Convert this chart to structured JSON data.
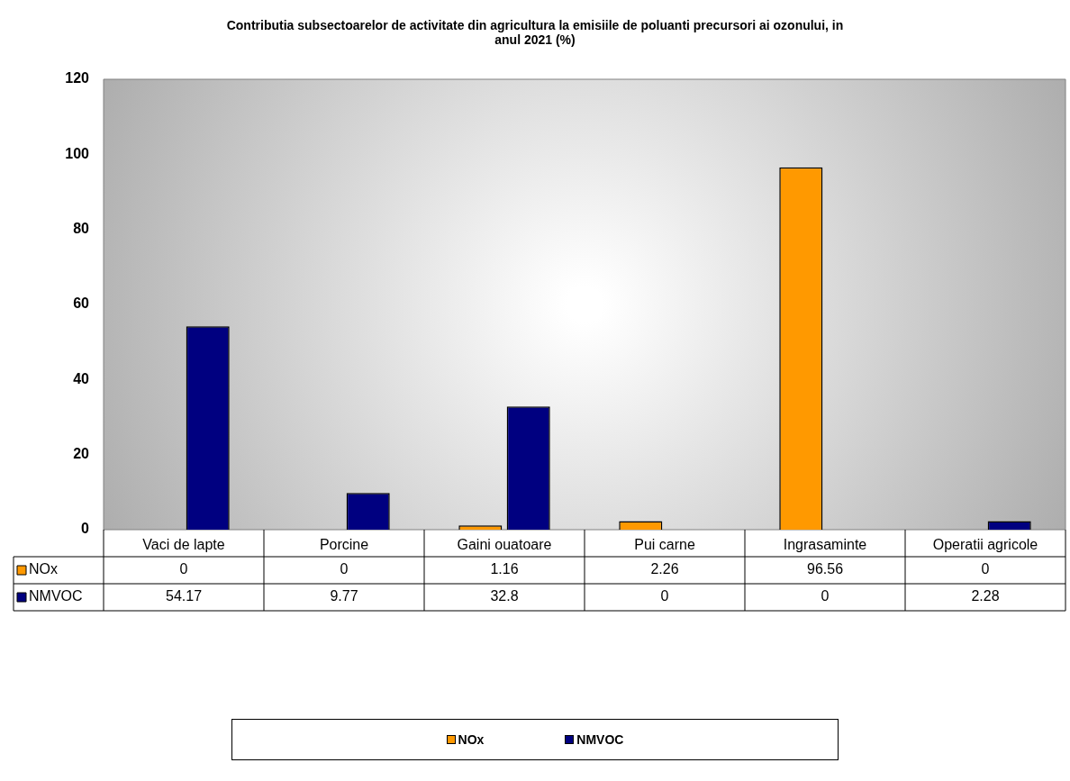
{
  "chart_data": {
    "type": "bar",
    "title": "Contributia  subsectoarelor de activitate din agricultura la emisiile de poluanti precursori ai ozonului, in anul 2021 (%)",
    "categories": [
      "Vaci de lapte",
      "Porcine",
      "Gaini ouatoare",
      "Pui carne",
      "Ingrasaminte",
      "Operatii agricole"
    ],
    "series": [
      {
        "name": "NOx",
        "color": "#ff9900",
        "values": [
          0,
          0,
          1.16,
          2.26,
          96.56,
          0
        ]
      },
      {
        "name": "NMVOC",
        "color": "#000080",
        "values": [
          54.17,
          9.77,
          32.8,
          0,
          0,
          2.28
        ]
      }
    ],
    "ylim": [
      0,
      120
    ],
    "yticks": [
      0,
      20,
      40,
      60,
      80,
      100,
      120
    ],
    "grid": false,
    "legend": "bottom",
    "data_labels": true
  }
}
